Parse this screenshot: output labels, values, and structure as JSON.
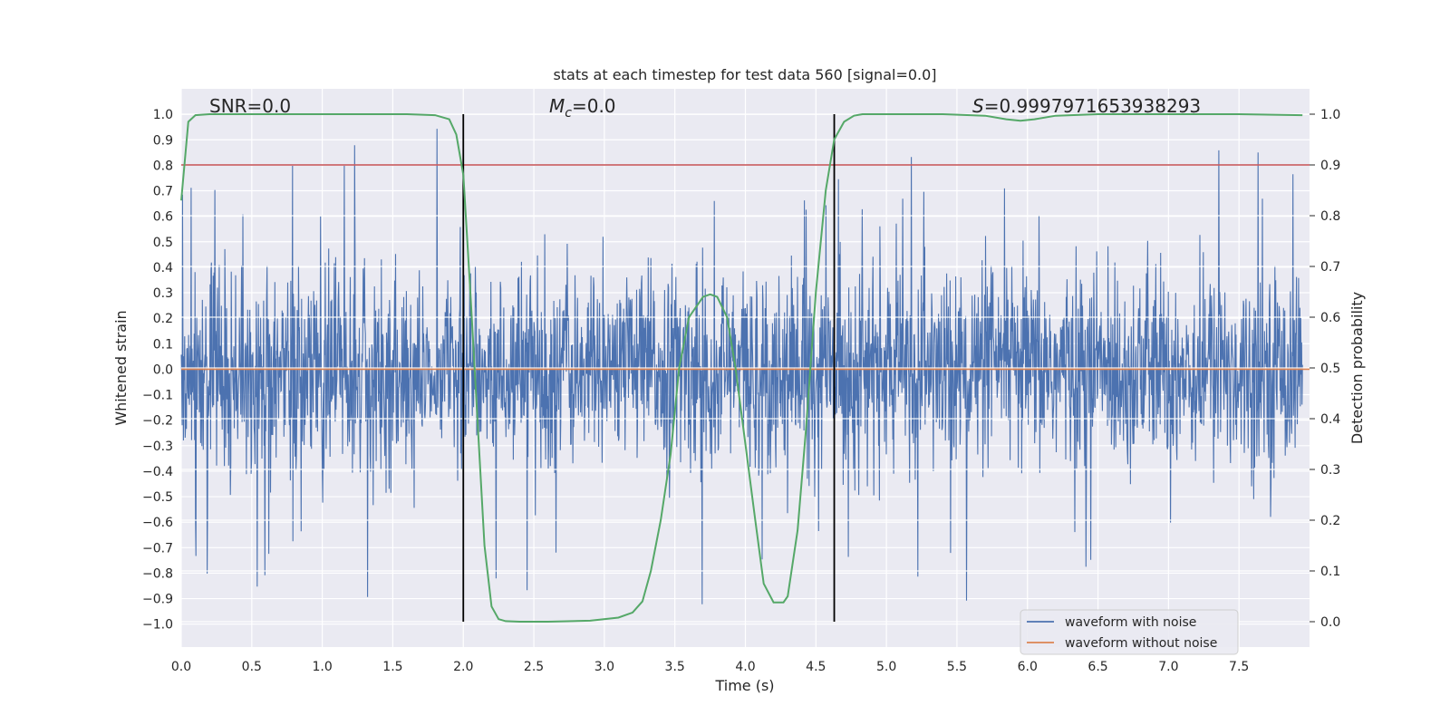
{
  "chart_data": {
    "type": "line",
    "title": "stats at each timestep for test data 560 [signal=0.0]",
    "xlabel": "Time (s)",
    "ylabel": "Whitened strain",
    "y2label": "Detection probability",
    "xlim": [
      0.0,
      8.0
    ],
    "ylim": [
      -1.09,
      1.1
    ],
    "y2lim": [
      -0.05,
      1.05
    ],
    "xticks": [
      "0.0",
      "0.5",
      "1.0",
      "1.5",
      "2.0",
      "2.5",
      "3.0",
      "3.5",
      "4.0",
      "4.5",
      "5.0",
      "5.5",
      "6.0",
      "6.5",
      "7.0",
      "7.5"
    ],
    "yticks": [
      "1.0",
      "0.9",
      "0.8",
      "0.7",
      "0.6",
      "0.5",
      "0.4",
      "0.3",
      "0.2",
      "0.1",
      "0.0",
      "-0.1",
      "-0.2",
      "-0.3",
      "-0.4",
      "-0.5",
      "-0.6",
      "-0.7",
      "-0.8",
      "-0.9",
      "-1.0"
    ],
    "y2ticks": [
      "1.0",
      "0.9",
      "0.8",
      "0.7",
      "0.6",
      "0.5",
      "0.4",
      "0.3",
      "0.2",
      "0.1",
      "0.0"
    ],
    "annotations": {
      "snr": "SNR=0.0",
      "mc": "=0.0",
      "mc_symbol": "M",
      "mc_sub": "c",
      "s": "=0.9997971653938293",
      "s_symbol": "S"
    },
    "noise_envelope": {
      "typical_abs": 0.35,
      "max_abs": 1.0
    },
    "series": [
      {
        "name": "waveform with noise",
        "color": "#4c72b0",
        "kind": "noise_trace"
      },
      {
        "name": "waveform without noise",
        "color": "#dd8452",
        "value": 0.0
      },
      {
        "name": "detection probability",
        "color": "#55a868",
        "x": [
          0.0,
          0.05,
          0.1,
          0.2,
          0.4,
          0.8,
          1.2,
          1.6,
          1.8,
          1.9,
          1.95,
          2.0,
          2.05,
          2.1,
          2.15,
          2.2,
          2.25,
          2.3,
          2.4,
          2.6,
          2.9,
          3.1,
          3.2,
          3.27,
          3.33,
          3.4,
          3.47,
          3.53,
          3.6,
          3.7,
          3.75,
          3.8,
          3.87,
          3.93,
          4.0,
          4.07,
          4.13,
          4.2,
          4.27,
          4.3,
          4.37,
          4.43,
          4.5,
          4.57,
          4.63,
          4.7,
          4.77,
          4.83,
          4.9,
          5.1,
          5.4,
          5.7,
          5.85,
          5.95,
          6.05,
          6.2,
          6.5,
          7.0,
          7.5,
          7.95
        ],
        "y": [
          0.83,
          0.985,
          0.998,
          1.0,
          1.0,
          1.0,
          1.0,
          1.0,
          0.998,
          0.99,
          0.96,
          0.88,
          0.65,
          0.4,
          0.15,
          0.03,
          0.005,
          0.001,
          0.0,
          0.0,
          0.002,
          0.008,
          0.018,
          0.04,
          0.1,
          0.2,
          0.33,
          0.5,
          0.6,
          0.64,
          0.645,
          0.64,
          0.6,
          0.5,
          0.35,
          0.2,
          0.075,
          0.038,
          0.038,
          0.05,
          0.18,
          0.38,
          0.65,
          0.85,
          0.95,
          0.985,
          0.997,
          1.0,
          1.0,
          1.0,
          1.0,
          0.997,
          0.99,
          0.987,
          0.99,
          0.997,
          1.0,
          1.0,
          1.0,
          0.998
        ]
      },
      {
        "name": "threshold",
        "color": "#c44e52",
        "value": 0.9,
        "axis": "right"
      }
    ],
    "vertical_markers": [
      2.0,
      4.63
    ],
    "legend": {
      "placement": "lower-right",
      "entries": [
        "waveform with noise",
        "waveform without noise"
      ]
    }
  }
}
